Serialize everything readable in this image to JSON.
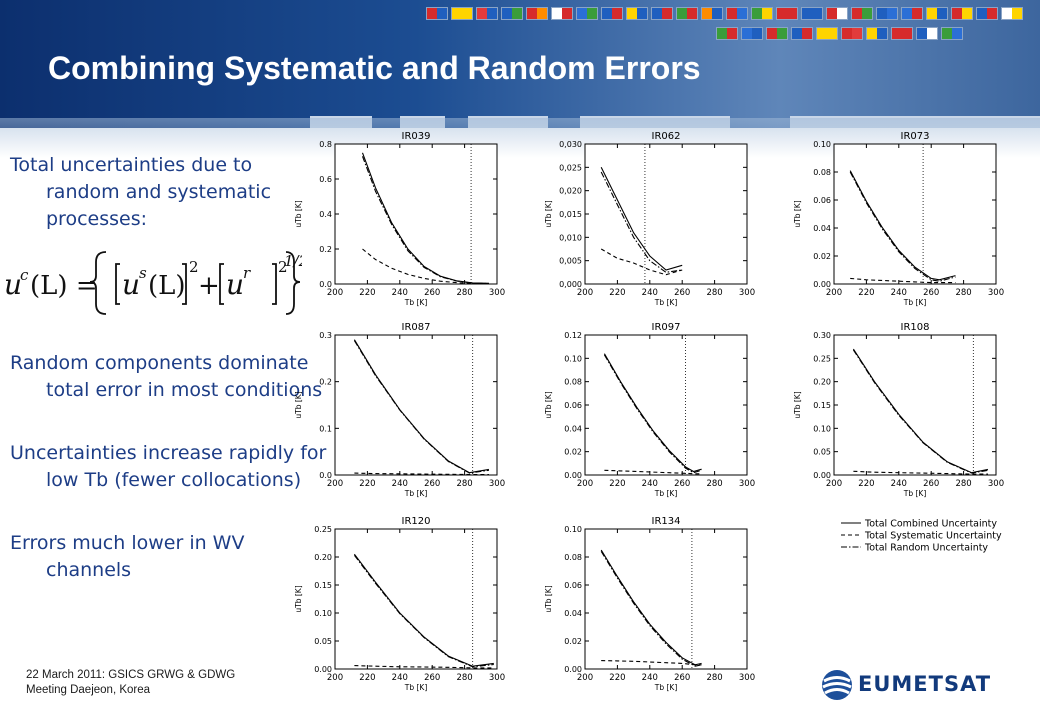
{
  "slide": {
    "title": "Combining Systematic and Random Errors",
    "bullets": [
      "Total uncertainties due to random and systematic processes:",
      "Random components dominate total error in most conditions",
      "Uncertainties increase rapidly for low Tb (fewer collocations)",
      "Errors much lower in WV channels"
    ],
    "formula": {
      "lhs": "u",
      "lhs_sup": "c",
      "arg": "(L) =",
      "term1": "u",
      "term1_sup": "s",
      "term2": "u",
      "term2_sup": "r",
      "paren": "(L)",
      "square": "2",
      "plus": "+",
      "exponent": "1/2"
    },
    "footer": [
      "22 March 2011: GSICS GRWG & GDWG",
      "Meeting Daejeon, Korea"
    ],
    "logo": "EUMETSAT",
    "flag_colors": [
      "#d62b2b",
      "#ffd400",
      "#e23b3b",
      "#1f5fbf",
      "#d62b2b",
      "#ffffff",
      "#2b6fd6",
      "#1f5fbf",
      "#ffd400",
      "#1f5fbf",
      "#3a9d3a",
      "#ff8c00",
      "#d62b2b",
      "#3a9d3a",
      "#d62b2b",
      "#1f5fbf",
      "#d62b2b",
      "#d62b2b",
      "#1f5fbf",
      "#2b6fd6",
      "#ffd400",
      "#d62b2b",
      "#1f5fbf",
      "#ffffff",
      "#3a9d3a",
      "#2b6fd6",
      "#d62b2b",
      "#1f5fbf",
      "#ffd400",
      "#d62b2b",
      "#ffd400",
      "#d62b2b",
      "#1f5fbf",
      "#3a9d3a"
    ]
  },
  "chart_data": [
    {
      "type": "line",
      "title": "IR039",
      "xlabel": "Tb [K]",
      "ylabel": "uTb [K]",
      "xlim": [
        200,
        300
      ],
      "ylim": [
        0,
        0.8
      ],
      "xticks": [
        "200",
        "220",
        "240",
        "260",
        "280",
        "300"
      ],
      "yticks": [
        "0.0",
        "0.2",
        "0.4",
        "0.6",
        "0.8"
      ],
      "vline": 284,
      "x": [
        217,
        225,
        235,
        245,
        255,
        265,
        275,
        285,
        295
      ],
      "series": [
        {
          "style": "solid",
          "values": [
            0.75,
            0.55,
            0.35,
            0.2,
            0.1,
            0.045,
            0.018,
            0.006,
            0.004
          ]
        },
        {
          "style": "dashdot",
          "values": [
            0.73,
            0.53,
            0.34,
            0.19,
            0.095,
            0.042,
            0.017,
            0.005,
            0.003
          ]
        },
        {
          "style": "dashed",
          "values": [
            0.2,
            0.14,
            0.09,
            0.055,
            0.032,
            0.016,
            0.008,
            0.003,
            0.002
          ]
        }
      ]
    },
    {
      "type": "line",
      "title": "IR062",
      "xlabel": "Tb [K]",
      "ylabel": "uTb [K]",
      "xlim": [
        200,
        300
      ],
      "ylim": [
        0,
        0.03
      ],
      "xticks": [
        "200",
        "220",
        "240",
        "260",
        "280",
        "300"
      ],
      "yticks": [
        "0,000",
        "0,005",
        "0,010",
        "0,015",
        "0,020",
        "0,025",
        "0,030"
      ],
      "vline": 237,
      "x": [
        210,
        220,
        230,
        240,
        250,
        260
      ],
      "series": [
        {
          "style": "solid",
          "values": [
            0.025,
            0.018,
            0.011,
            0.006,
            0.003,
            0.004
          ]
        },
        {
          "style": "dashdot",
          "values": [
            0.024,
            0.017,
            0.01,
            0.005,
            0.0025,
            0.003
          ]
        },
        {
          "style": "dashed",
          "values": [
            0.0075,
            0.0055,
            0.0045,
            0.003,
            0.002,
            0.003
          ]
        }
      ]
    },
    {
      "type": "line",
      "title": "IR073",
      "xlabel": "Tb [K]",
      "ylabel": "uTb [K]",
      "xlim": [
        200,
        300
      ],
      "ylim": [
        0,
        0.1
      ],
      "xticks": [
        "200",
        "220",
        "240",
        "260",
        "280",
        "300"
      ],
      "yticks": [
        "0.00",
        "0.02",
        "0.04",
        "0.06",
        "0.08",
        "0.10"
      ],
      "vline": 255,
      "x": [
        210,
        220,
        230,
        240,
        250,
        260,
        265,
        275
      ],
      "series": [
        {
          "style": "solid",
          "values": [
            0.081,
            0.059,
            0.04,
            0.024,
            0.012,
            0.004,
            0.003,
            0.006
          ]
        },
        {
          "style": "dashdot",
          "values": [
            0.08,
            0.058,
            0.039,
            0.023,
            0.011,
            0.003,
            0.002,
            0.005
          ]
        },
        {
          "style": "dashed",
          "values": [
            0.004,
            0.003,
            0.0025,
            0.002,
            0.0015,
            0.001,
            0.001,
            0.001
          ]
        }
      ]
    },
    {
      "type": "line",
      "title": "IR087",
      "xlabel": "Tb [K]",
      "ylabel": "uTb [K]",
      "xlim": [
        200,
        300
      ],
      "ylim": [
        0,
        0.3
      ],
      "xticks": [
        "200",
        "220",
        "240",
        "260",
        "280",
        "300"
      ],
      "yticks": [
        "0.0",
        "0.1",
        "0.2",
        "0.3"
      ],
      "vline": 285,
      "x": [
        212,
        225,
        240,
        255,
        270,
        283,
        295
      ],
      "series": [
        {
          "style": "solid",
          "values": [
            0.29,
            0.215,
            0.14,
            0.078,
            0.03,
            0.005,
            0.012
          ]
        },
        {
          "style": "dashdot",
          "values": [
            0.288,
            0.213,
            0.139,
            0.077,
            0.029,
            0.004,
            0.01
          ]
        },
        {
          "style": "dashed",
          "values": [
            0.004,
            0.003,
            0.0025,
            0.002,
            0.0015,
            0.001,
            0.001
          ]
        }
      ]
    },
    {
      "type": "line",
      "title": "IR097",
      "xlabel": "Tb [K]",
      "ylabel": "uTb [K]",
      "xlim": [
        200,
        300
      ],
      "ylim": [
        0,
        0.12
      ],
      "xticks": [
        "200",
        "220",
        "240",
        "260",
        "280",
        "300"
      ],
      "yticks": [
        "0.00",
        "0.02",
        "0.04",
        "0.06",
        "0.08",
        "0.10",
        "0.12"
      ],
      "vline": 262,
      "x": [
        212,
        222,
        232,
        242,
        252,
        262,
        267,
        272
      ],
      "series": [
        {
          "style": "solid",
          "values": [
            0.104,
            0.08,
            0.058,
            0.038,
            0.021,
            0.007,
            0.003,
            0.005
          ]
        },
        {
          "style": "dashdot",
          "values": [
            0.103,
            0.079,
            0.057,
            0.037,
            0.02,
            0.006,
            0.002,
            0.004
          ]
        },
        {
          "style": "dashed",
          "values": [
            0.004,
            0.0035,
            0.003,
            0.0025,
            0.002,
            0.0015,
            0.001,
            0.001
          ]
        }
      ]
    },
    {
      "type": "line",
      "title": "IR108",
      "xlabel": "Tb [K]",
      "ylabel": "uTb [K]",
      "xlim": [
        200,
        300
      ],
      "ylim": [
        0,
        0.3
      ],
      "xticks": [
        "200",
        "220",
        "240",
        "260",
        "280",
        "300"
      ],
      "yticks": [
        "0.00",
        "0.05",
        "0.10",
        "0.15",
        "0.20",
        "0.25",
        "0.30"
      ],
      "vline": 286,
      "x": [
        212,
        225,
        240,
        255,
        270,
        285,
        295
      ],
      "series": [
        {
          "style": "solid",
          "values": [
            0.27,
            0.2,
            0.13,
            0.07,
            0.028,
            0.005,
            0.012
          ]
        },
        {
          "style": "dashdot",
          "values": [
            0.268,
            0.198,
            0.128,
            0.069,
            0.027,
            0.004,
            0.01
          ]
        },
        {
          "style": "dashed",
          "values": [
            0.008,
            0.006,
            0.005,
            0.004,
            0.003,
            0.002,
            0.002
          ]
        }
      ]
    },
    {
      "type": "line",
      "title": "IR120",
      "xlabel": "Tb [K]",
      "ylabel": "uTb [K]",
      "xlim": [
        200,
        300
      ],
      "ylim": [
        0,
        0.25
      ],
      "xticks": [
        "200",
        "220",
        "240",
        "260",
        "280",
        "300"
      ],
      "yticks": [
        "0.00",
        "0.05",
        "0.10",
        "0.15",
        "0.20",
        "0.25"
      ],
      "vline": 285,
      "x": [
        212,
        225,
        240,
        255,
        270,
        285,
        298
      ],
      "series": [
        {
          "style": "solid",
          "values": [
            0.205,
            0.155,
            0.1,
            0.057,
            0.023,
            0.005,
            0.01
          ]
        },
        {
          "style": "dashdot",
          "values": [
            0.203,
            0.153,
            0.099,
            0.056,
            0.022,
            0.004,
            0.008
          ]
        },
        {
          "style": "dashed",
          "values": [
            0.006,
            0.005,
            0.004,
            0.0035,
            0.003,
            0.002,
            0.002
          ]
        }
      ]
    },
    {
      "type": "line",
      "title": "IR134",
      "xlabel": "Tb [K]",
      "ylabel": "uTb [K]",
      "xlim": [
        200,
        300
      ],
      "ylim": [
        0,
        0.1
      ],
      "xticks": [
        "200",
        "220",
        "240",
        "260",
        "280",
        "300"
      ],
      "yticks": [
        "0.00",
        "0.02",
        "0.04",
        "0.06",
        "0.08",
        "0.10"
      ],
      "vline": 266,
      "x": [
        210,
        220,
        230,
        240,
        250,
        260,
        268,
        272
      ],
      "series": [
        {
          "style": "solid",
          "values": [
            0.085,
            0.066,
            0.048,
            0.032,
            0.019,
            0.008,
            0.003,
            0.004
          ]
        },
        {
          "style": "dashdot",
          "values": [
            0.084,
            0.065,
            0.047,
            0.031,
            0.018,
            0.007,
            0.002,
            0.003
          ]
        },
        {
          "style": "dashed",
          "values": [
            0.006,
            0.0058,
            0.0055,
            0.005,
            0.0045,
            0.004,
            0.003,
            0.003
          ]
        }
      ]
    }
  ],
  "legend": [
    {
      "style": "solid",
      "label": "Total Combined Uncertainty"
    },
    {
      "style": "dashed",
      "label": "Total Systematic Uncertainty"
    },
    {
      "style": "dashdot",
      "label": "Total Random Uncertainty"
    }
  ]
}
